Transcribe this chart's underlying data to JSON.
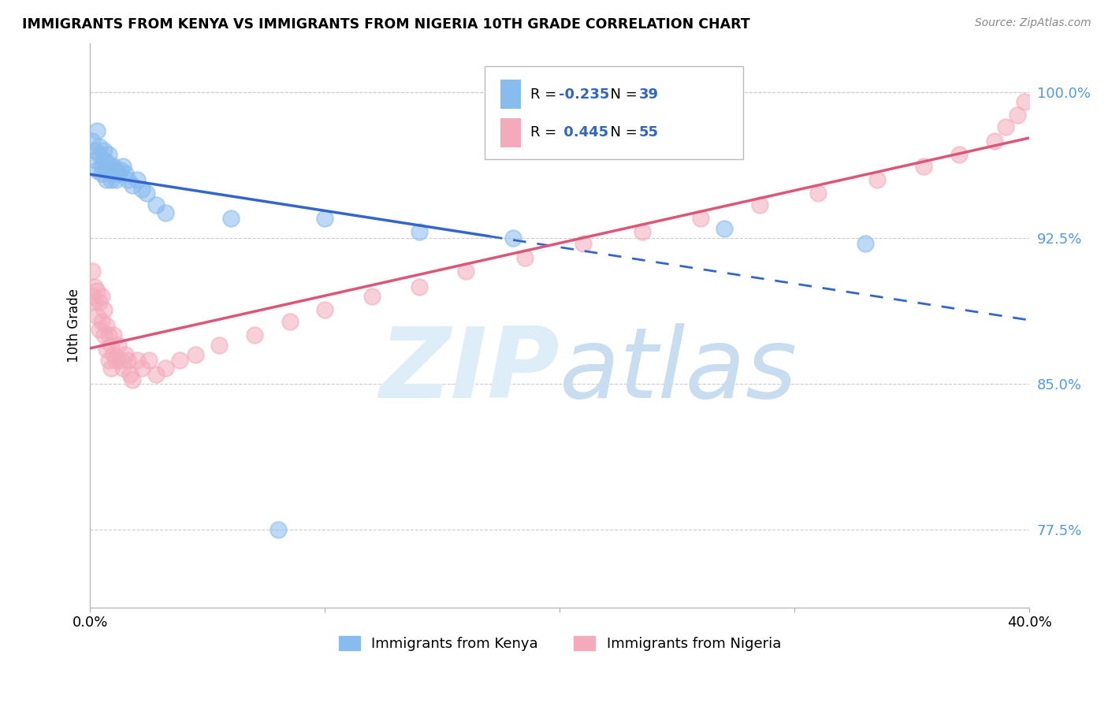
{
  "title": "IMMIGRANTS FROM KENYA VS IMMIGRANTS FROM NIGERIA 10TH GRADE CORRELATION CHART",
  "source": "Source: ZipAtlas.com",
  "ylabel": "10th Grade",
  "ytick_vals": [
    0.775,
    0.85,
    0.925,
    1.0
  ],
  "ytick_labels": [
    "77.5%",
    "85.0%",
    "92.5%",
    "100.0%"
  ],
  "xmin": 0.0,
  "xmax": 0.4,
  "ymin": 0.735,
  "ymax": 1.025,
  "kenya_color": "#88BBEE",
  "nigeria_color": "#F4AABB",
  "kenya_line_color": "#3366CC",
  "nigeria_line_color": "#DD5577",
  "kenya_R": -0.235,
  "kenya_N": 39,
  "nigeria_R": 0.445,
  "nigeria_N": 55,
  "kenya_x": [
    0.001,
    0.002,
    0.002,
    0.003,
    0.003,
    0.004,
    0.004,
    0.005,
    0.005,
    0.006,
    0.006,
    0.007,
    0.007,
    0.008,
    0.008,
    0.009,
    0.009,
    0.01,
    0.01,
    0.011,
    0.011,
    0.012,
    0.013,
    0.014,
    0.015,
    0.016,
    0.018,
    0.02,
    0.022,
    0.024,
    0.028,
    0.032,
    0.06,
    0.08,
    0.1,
    0.14,
    0.18,
    0.27,
    0.33
  ],
  "kenya_y": [
    0.975,
    0.97,
    0.965,
    0.96,
    0.98,
    0.968,
    0.972,
    0.962,
    0.958,
    0.965,
    0.97,
    0.96,
    0.955,
    0.968,
    0.963,
    0.96,
    0.955,
    0.962,
    0.958,
    0.96,
    0.955,
    0.958,
    0.96,
    0.962,
    0.958,
    0.955,
    0.952,
    0.955,
    0.95,
    0.948,
    0.942,
    0.938,
    0.935,
    0.775,
    0.935,
    0.928,
    0.925,
    0.93,
    0.922
  ],
  "nigeria_x": [
    0.001,
    0.001,
    0.002,
    0.002,
    0.003,
    0.003,
    0.004,
    0.004,
    0.005,
    0.005,
    0.006,
    0.006,
    0.007,
    0.007,
    0.008,
    0.008,
    0.009,
    0.009,
    0.01,
    0.01,
    0.011,
    0.012,
    0.013,
    0.014,
    0.015,
    0.016,
    0.017,
    0.018,
    0.02,
    0.022,
    0.025,
    0.028,
    0.032,
    0.038,
    0.045,
    0.055,
    0.07,
    0.085,
    0.1,
    0.12,
    0.14,
    0.16,
    0.185,
    0.21,
    0.235,
    0.26,
    0.285,
    0.31,
    0.335,
    0.355,
    0.37,
    0.385,
    0.39,
    0.395,
    0.398
  ],
  "nigeria_y": [
    0.908,
    0.895,
    0.9,
    0.892,
    0.898,
    0.885,
    0.892,
    0.878,
    0.895,
    0.882,
    0.888,
    0.875,
    0.88,
    0.868,
    0.875,
    0.862,
    0.87,
    0.858,
    0.865,
    0.875,
    0.862,
    0.87,
    0.862,
    0.858,
    0.865,
    0.862,
    0.855,
    0.852,
    0.862,
    0.858,
    0.862,
    0.855,
    0.858,
    0.862,
    0.865,
    0.87,
    0.875,
    0.882,
    0.888,
    0.895,
    0.9,
    0.908,
    0.915,
    0.922,
    0.928,
    0.935,
    0.942,
    0.948,
    0.955,
    0.962,
    0.968,
    0.975,
    0.982,
    0.988,
    0.995
  ],
  "watermark_zip": "ZIP",
  "watermark_atlas": "atlas",
  "watermark_color": "#DDEEFF",
  "legend_kenya_label": "Immigrants from Kenya",
  "legend_nigeria_label": "Immigrants from Nigeria",
  "kenya_line_solid_end": 0.17,
  "nigeria_line_end": 0.4
}
